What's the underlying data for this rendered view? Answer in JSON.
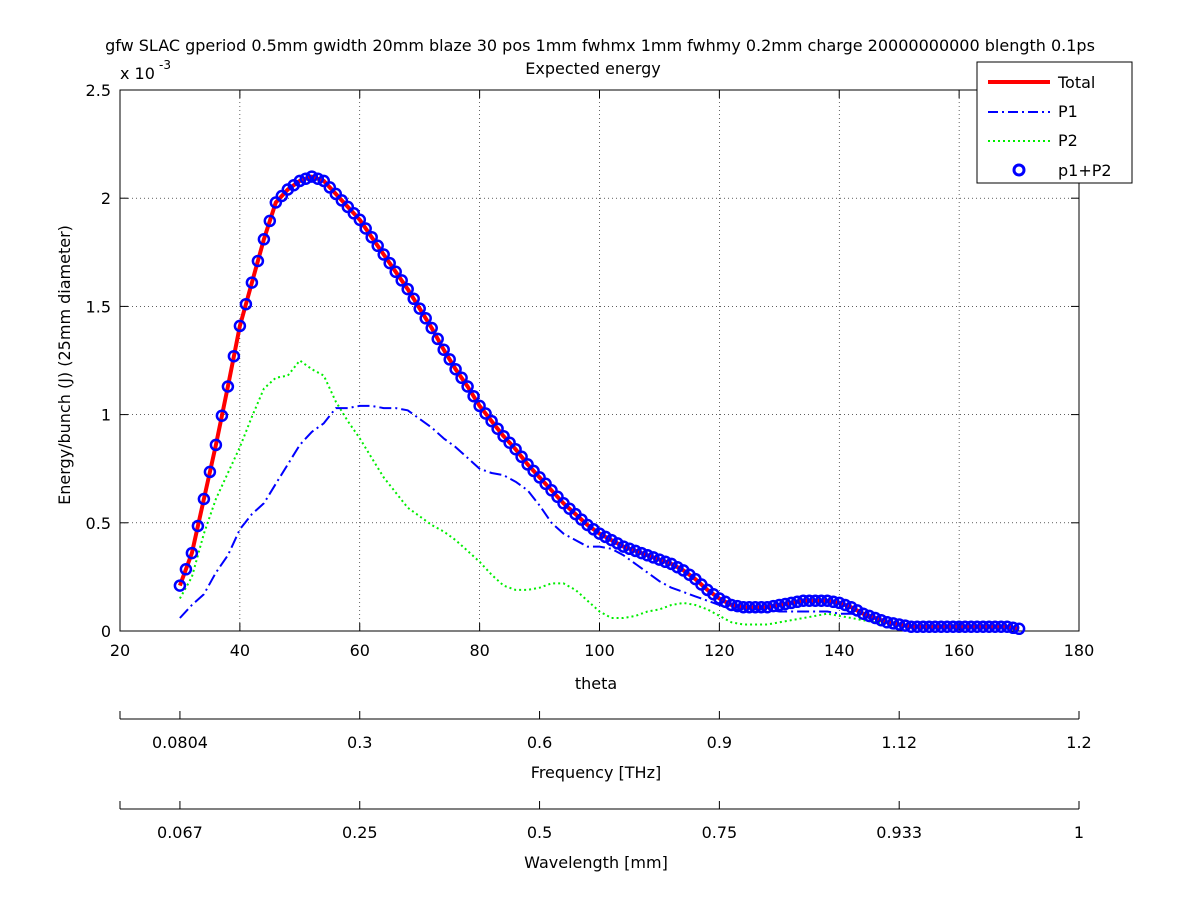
{
  "chart_data": {
    "type": "line",
    "title": "gfw SLAC gperiod 0.5mm gwidth 20mm blaze 30 pos 1mm fwhmx 1mm fwhmy 0.2mm charge 20000000000 blength 0.1ps",
    "subtitle": "Expected energy",
    "xlabel": "theta",
    "ylabel": "Energy/bunch (J) (25mm diameter)",
    "y_exponent_label": "x 10",
    "y_exponent_power": "-3",
    "xlim": [
      20,
      180
    ],
    "ylim": [
      0,
      0.0025
    ],
    "x_ticks": [
      20,
      40,
      60,
      80,
      100,
      120,
      140,
      160,
      180
    ],
    "x_tick_labels": [
      "20",
      "40",
      "60",
      "80",
      "100",
      "120",
      "140",
      "160",
      "180"
    ],
    "y_ticks": [
      0,
      0.0005,
      0.001,
      0.0015,
      0.002,
      0.0025
    ],
    "y_tick_labels": [
      "0",
      "0.5",
      "1",
      "1.5",
      "2",
      "2.5"
    ],
    "grid": true,
    "legend_position": "top-right",
    "legend": [
      {
        "name": "Total",
        "style": "solid",
        "color": "#ff0000"
      },
      {
        "name": "P1",
        "style": "dashdot",
        "color": "#0000ff"
      },
      {
        "name": "P2",
        "style": "dotted",
        "color": "#00ee00"
      },
      {
        "name": "p1+P2",
        "style": "circle",
        "color": "#0000ff"
      }
    ],
    "series": [
      {
        "name": "Total",
        "color": "#ff0000",
        "style": "solid",
        "x": [
          30,
          32,
          34,
          36,
          38,
          40,
          42,
          44,
          46,
          48,
          50,
          52,
          54,
          56,
          58,
          60,
          62,
          64,
          66,
          68,
          70,
          72,
          74,
          76,
          78,
          80,
          82,
          84,
          86,
          88,
          90,
          92,
          94,
          96,
          98,
          100,
          102,
          104,
          106,
          108,
          110,
          112,
          114,
          116,
          118,
          120,
          122,
          124,
          126,
          128,
          130,
          132,
          134,
          136,
          138,
          140,
          142,
          144,
          146,
          148,
          150,
          152,
          154,
          156,
          158,
          160,
          162,
          164,
          166,
          168,
          170
        ],
        "y": [
          0.00021,
          0.00036,
          0.00061,
          0.00086,
          0.00113,
          0.00141,
          0.00161,
          0.00181,
          0.00198,
          0.00204,
          0.00208,
          0.0021,
          0.00208,
          0.00202,
          0.00196,
          0.0019,
          0.00182,
          0.00174,
          0.00166,
          0.00158,
          0.00149,
          0.0014,
          0.0013,
          0.00121,
          0.00113,
          0.00104,
          0.00097,
          0.0009,
          0.00084,
          0.00077,
          0.00071,
          0.00065,
          0.00059,
          0.00054,
          0.00049,
          0.00045,
          0.00042,
          0.00039,
          0.00037,
          0.00035,
          0.00033,
          0.00031,
          0.00028,
          0.00024,
          0.00019,
          0.00015,
          0.00012,
          0.00011,
          0.00011,
          0.00011,
          0.00012,
          0.00013,
          0.00014,
          0.00014,
          0.00014,
          0.00013,
          0.00011,
          8e-05,
          6e-05,
          4e-05,
          3e-05,
          2e-05,
          2e-05,
          2e-05,
          2e-05,
          2e-05,
          2e-05,
          2e-05,
          2e-05,
          2e-05,
          1e-05
        ]
      },
      {
        "name": "P1",
        "color": "#0000ff",
        "style": "dashdot",
        "x": [
          30,
          32,
          34,
          36,
          38,
          40,
          42,
          44,
          46,
          48,
          50,
          52,
          54,
          56,
          58,
          60,
          62,
          64,
          66,
          68,
          70,
          72,
          74,
          76,
          78,
          80,
          82,
          84,
          86,
          88,
          90,
          92,
          94,
          96,
          98,
          100,
          102,
          104,
          106,
          108,
          110,
          112,
          114,
          116,
          118,
          120,
          122,
          124,
          126,
          128,
          130,
          132,
          134,
          136,
          138,
          140,
          142,
          144,
          146,
          148,
          150,
          152
        ],
        "y": [
          6e-05,
          0.00012,
          0.00017,
          0.00027,
          0.00035,
          0.00047,
          0.00054,
          0.00059,
          0.00068,
          0.00077,
          0.00086,
          0.00092,
          0.00096,
          0.00103,
          0.00103,
          0.00104,
          0.00104,
          0.00103,
          0.00103,
          0.00102,
          0.00098,
          0.00094,
          0.00089,
          0.00085,
          0.0008,
          0.00075,
          0.00073,
          0.00072,
          0.00069,
          0.00065,
          0.00058,
          0.0005,
          0.00045,
          0.00042,
          0.00039,
          0.00039,
          0.00038,
          0.00035,
          0.00031,
          0.00027,
          0.00023,
          0.0002,
          0.00018,
          0.00016,
          0.00014,
          0.00012,
          0.0001,
          0.0001,
          0.0001,
          0.0001,
          9e-05,
          9e-05,
          9e-05,
          9e-05,
          9e-05,
          8e-05,
          8e-05,
          7e-05,
          5e-05,
          4e-05,
          3e-05,
          2e-05
        ]
      },
      {
        "name": "P2",
        "color": "#00ee00",
        "style": "dotted",
        "x": [
          30,
          32,
          34,
          36,
          38,
          40,
          42,
          44,
          46,
          48,
          50,
          52,
          54,
          56,
          58,
          60,
          62,
          64,
          66,
          68,
          70,
          72,
          74,
          76,
          78,
          80,
          82,
          84,
          86,
          88,
          90,
          92,
          94,
          96,
          98,
          100,
          102,
          104,
          106,
          108,
          110,
          112,
          114,
          116,
          118,
          120,
          122,
          124,
          126,
          128,
          130,
          132,
          134,
          136,
          138,
          140,
          142,
          144,
          146,
          148,
          150,
          152
        ],
        "y": [
          0.00015,
          0.00025,
          0.00045,
          0.00061,
          0.00073,
          0.00085,
          0.00099,
          0.00112,
          0.00117,
          0.00118,
          0.00125,
          0.00121,
          0.00118,
          0.00106,
          0.00097,
          0.00089,
          0.0008,
          0.00071,
          0.00064,
          0.00057,
          0.00053,
          0.00049,
          0.00046,
          0.00042,
          0.00037,
          0.00032,
          0.00026,
          0.00021,
          0.00019,
          0.00019,
          0.0002,
          0.00022,
          0.00022,
          0.00019,
          0.00014,
          9e-05,
          6e-05,
          6e-05,
          7e-05,
          9e-05,
          0.0001,
          0.00012,
          0.00013,
          0.00012,
          0.0001,
          7e-05,
          4e-05,
          3e-05,
          3e-05,
          3e-05,
          4e-05,
          5e-05,
          6e-05,
          7e-05,
          8e-05,
          7e-05,
          6e-05,
          5e-05,
          4e-05,
          3e-05,
          3e-05,
          2e-05
        ]
      }
    ],
    "markers_series": {
      "name": "p1+P2",
      "color": "#0000ff",
      "x_from": 30,
      "x_to": 170,
      "x_step": 1,
      "follows": "Total"
    },
    "secondary_axes": [
      {
        "label": "Frequency [THz]",
        "tick_positions_theta": [
          20,
          30,
          60,
          90,
          120,
          150,
          180
        ],
        "tick_labels": [
          "",
          "0.0804",
          "0.3",
          "0.6",
          "0.9",
          "1.12",
          "1.2"
        ]
      },
      {
        "label": "Wavelength [mm]",
        "tick_positions_theta": [
          20,
          30,
          60,
          90,
          120,
          150,
          180
        ],
        "tick_labels": [
          "",
          "0.067",
          "0.25",
          "0.5",
          "0.75",
          "0.933",
          "1"
        ]
      }
    ]
  }
}
